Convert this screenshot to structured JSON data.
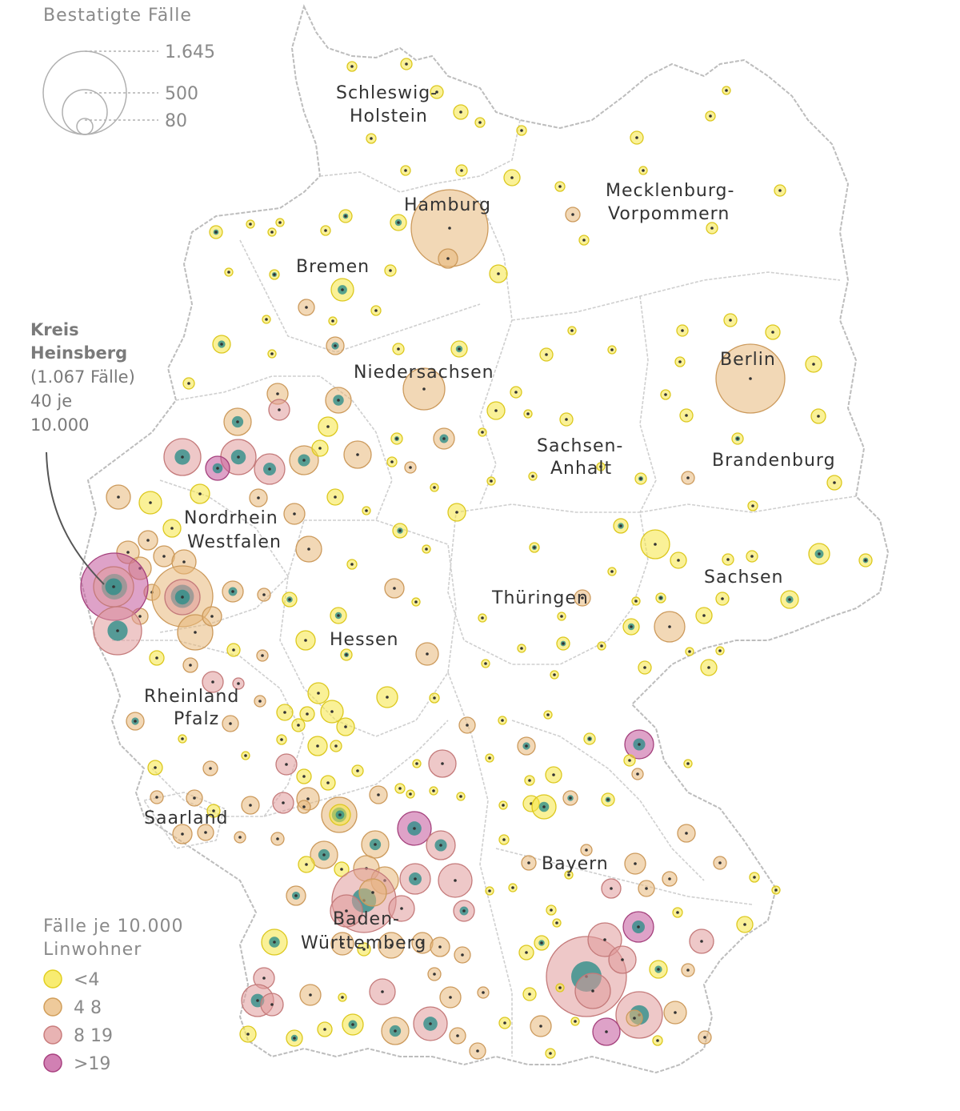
{
  "legend_size": {
    "title": "Bestatigte Fälle",
    "values": [
      "1.645",
      "500",
      "80"
    ]
  },
  "legend_color": {
    "title_line1": "Fälle je 10.000",
    "title_line2": "Linwohner",
    "classes": [
      {
        "label": "<4",
        "color": "#f5e642"
      },
      {
        "label": "4 8",
        "color": "#e8b87a"
      },
      {
        "label": "8 19",
        "color": "#e09a9a"
      },
      {
        "label": ">19",
        "color": "#c2569a"
      }
    ]
  },
  "callout": {
    "line1": "Kreis",
    "line2": "Heinsberg",
    "line3": "(1.067 Fälle)",
    "line4": "40 je",
    "line5": "10.000"
  },
  "states": [
    {
      "key": "sh1",
      "text": "Schleswig-"
    },
    {
      "key": "sh2",
      "text": "Holstein"
    },
    {
      "key": "hh",
      "text": "Hamburg"
    },
    {
      "key": "mv1",
      "text": "Mecklenburg-"
    },
    {
      "key": "mv2",
      "text": "Vorpommern"
    },
    {
      "key": "hb",
      "text": "Bremen"
    },
    {
      "key": "ni",
      "text": "Niedersachsen"
    },
    {
      "key": "be",
      "text": "Berlin"
    },
    {
      "key": "st1",
      "text": "Sachsen-"
    },
    {
      "key": "st2",
      "text": "Anhalt"
    },
    {
      "key": "bb",
      "text": "Brandenburg"
    },
    {
      "key": "nw1",
      "text": "Nordrhein"
    },
    {
      "key": "nw2",
      "text": "Westfalen"
    },
    {
      "key": "sn",
      "text": "Sachsen"
    },
    {
      "key": "th",
      "text": "Thüringen"
    },
    {
      "key": "he",
      "text": "Hessen"
    },
    {
      "key": "rp1",
      "text": "Rheinland"
    },
    {
      "key": "rp2",
      "text": "Pfalz"
    },
    {
      "key": "sl",
      "text": "Saarland"
    },
    {
      "key": "by",
      "text": "Bayern"
    },
    {
      "key": "bw1",
      "text": "Baden-"
    },
    {
      "key": "bw2",
      "text": "Württemberg"
    }
  ],
  "colors": {
    "lt4": "#f5e642",
    "c4_8": "#e8b87a",
    "c8_19": "#e09a9a",
    "gt19": "#c2569a",
    "teal": "#2e8f8a"
  }
}
